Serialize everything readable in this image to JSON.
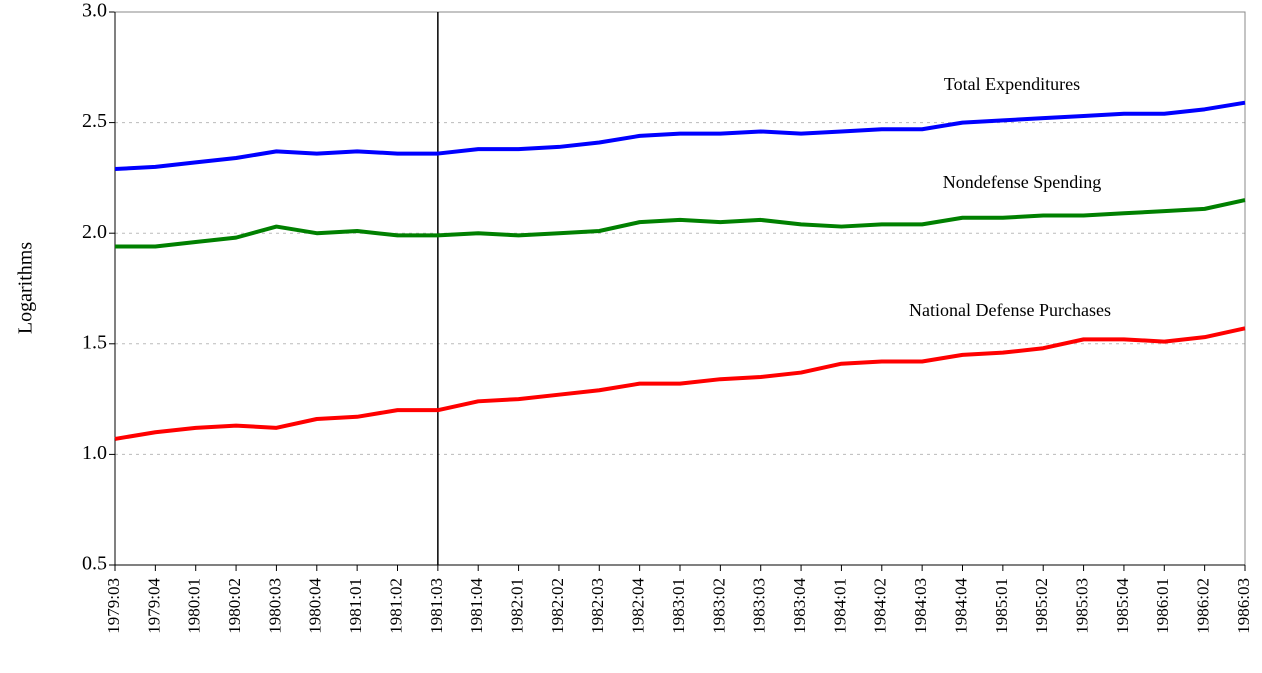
{
  "chart_data": {
    "type": "line",
    "y_label": "Logarithms",
    "categories": [
      "1979:03",
      "1979:04",
      "1980:01",
      "1980:02",
      "1980:03",
      "1980:04",
      "1981:01",
      "1981:02",
      "1981:03",
      "1981:04",
      "1982:01",
      "1982:02",
      "1982:03",
      "1982:04",
      "1983:01",
      "1983:02",
      "1983:03",
      "1983:04",
      "1984:01",
      "1984:02",
      "1984:03",
      "1984:04",
      "1985:01",
      "1985:02",
      "1985:03",
      "1985:04",
      "1986:01",
      "1986:02",
      "1986:03"
    ],
    "series": [
      {
        "name": "Total Expenditures",
        "color": "#0000ff",
        "values": [
          2.29,
          2.3,
          2.32,
          2.34,
          2.37,
          2.36,
          2.37,
          2.36,
          2.36,
          2.38,
          2.38,
          2.39,
          2.41,
          2.44,
          2.45,
          2.45,
          2.46,
          2.45,
          2.46,
          2.47,
          2.47,
          2.5,
          2.51,
          2.52,
          2.53,
          2.54,
          2.54,
          2.56,
          2.59
        ]
      },
      {
        "name": "Nondefense Spending",
        "color": "#008000",
        "values": [
          1.94,
          1.94,
          1.96,
          1.98,
          2.03,
          2.0,
          2.01,
          1.99,
          1.99,
          2.0,
          1.99,
          2.0,
          2.01,
          2.05,
          2.06,
          2.05,
          2.06,
          2.04,
          2.03,
          2.04,
          2.04,
          2.07,
          2.07,
          2.08,
          2.08,
          2.09,
          2.1,
          2.11,
          2.15
        ]
      },
      {
        "name": "National Defense Purchases",
        "color": "#ff0000",
        "values": [
          1.07,
          1.1,
          1.12,
          1.13,
          1.12,
          1.16,
          1.17,
          1.2,
          1.2,
          1.24,
          1.25,
          1.27,
          1.29,
          1.32,
          1.32,
          1.34,
          1.35,
          1.37,
          1.41,
          1.42,
          1.42,
          1.45,
          1.46,
          1.48,
          1.52,
          1.52,
          1.51,
          1.53,
          1.57
        ]
      }
    ],
    "ylim": [
      0.5,
      3.0
    ],
    "yticks": [
      0.5,
      {
        "value": 1,
        "label": "1.0"
      },
      1.5,
      {
        "value": 2,
        "label": "2.0"
      },
      2.5,
      {
        "value": 3,
        "label": "3.0"
      }
    ],
    "grid": true,
    "vertical_line_at": "1981:03"
  }
}
